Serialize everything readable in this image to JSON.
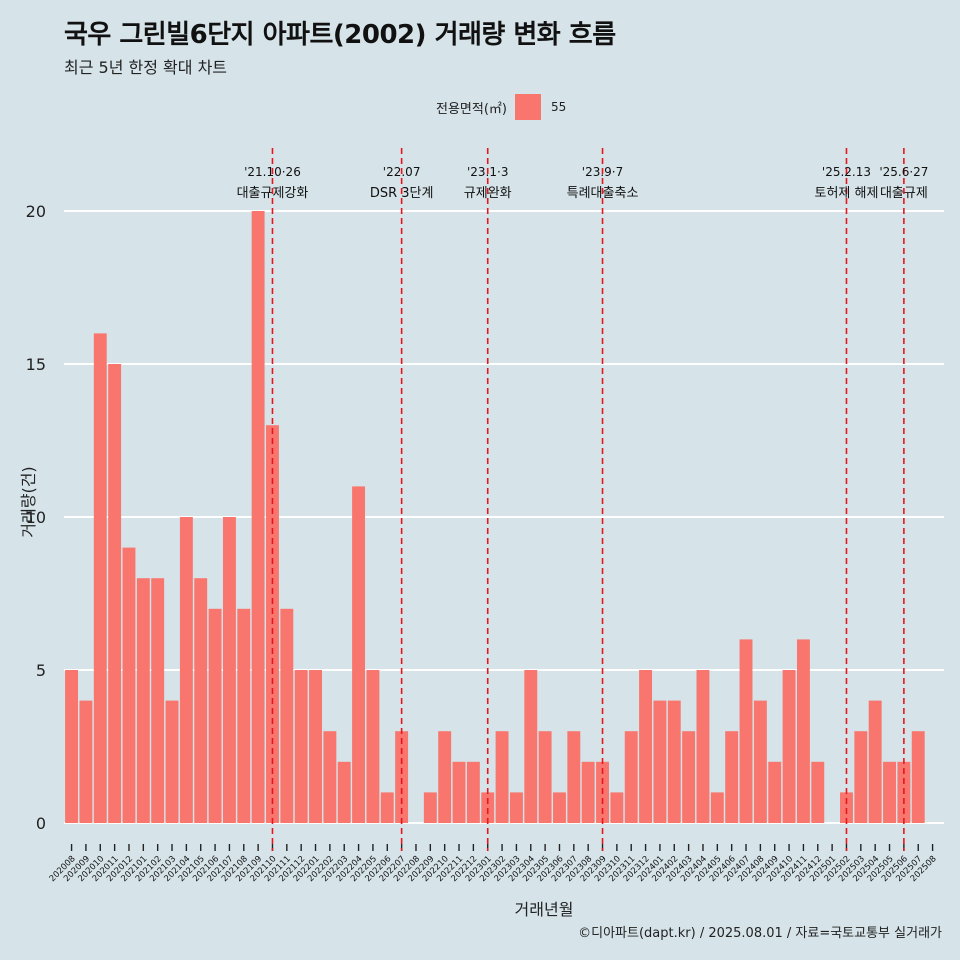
{
  "header": {
    "title": "국우 그린빌6단지 아파트(2002) 거래량 변화 흐름",
    "subtitle": "최근 5년 한정 확대 차트"
  },
  "legend": {
    "title": "전용면적(㎡)",
    "items": [
      {
        "label": "55",
        "color": "#f8766d"
      }
    ]
  },
  "caption": "©디아파트(dapt.kr) / 2025.08.01 / 자료=국토교통부 실거래가",
  "colors": {
    "background": "#d6e4ea",
    "bar": "#f8766d",
    "event_line": "#e8161b",
    "grid": "#ffffff"
  },
  "chart_data": {
    "type": "bar",
    "xlabel": "거래년월",
    "ylabel": "거래량(건)",
    "ylim": [
      -0.8,
      22.2
    ],
    "yticks": [
      0,
      5,
      10,
      15,
      20
    ],
    "grid": true,
    "legend_position": "top",
    "categories": [
      "202008",
      "202009",
      "202010",
      "202011",
      "202012",
      "202101",
      "202102",
      "202103",
      "202104",
      "202105",
      "202106",
      "202107",
      "202108",
      "202109",
      "202110",
      "202111",
      "202112",
      "202201",
      "202202",
      "202203",
      "202204",
      "202205",
      "202206",
      "202207",
      "202208",
      "202209",
      "202210",
      "202211",
      "202212",
      "202301",
      "202302",
      "202303",
      "202304",
      "202305",
      "202306",
      "202307",
      "202308",
      "202309",
      "202310",
      "202311",
      "202312",
      "202401",
      "202402",
      "202403",
      "202404",
      "202405",
      "202406",
      "202407",
      "202408",
      "202409",
      "202410",
      "202411",
      "202412",
      "202501",
      "202502",
      "202503",
      "202504",
      "202505",
      "202506",
      "202507",
      "202508"
    ],
    "series": [
      {
        "name": "55",
        "values": [
          5,
          4,
          16,
          15,
          9,
          8,
          8,
          4,
          10,
          8,
          7,
          10,
          7,
          20,
          13,
          7,
          5,
          5,
          3,
          2,
          11,
          5,
          1,
          3,
          0,
          1,
          3,
          2,
          2,
          1,
          3,
          1,
          5,
          3,
          1,
          3,
          2,
          2,
          1,
          3,
          5,
          4,
          4,
          3,
          5,
          1,
          3,
          6,
          4,
          2,
          5,
          6,
          2,
          0,
          1,
          3,
          4,
          2,
          2,
          3,
          0
        ]
      }
    ],
    "events": [
      {
        "date_label": "'21.10·26",
        "text": "대출규제강화",
        "at": "202110"
      },
      {
        "date_label": "'22.07",
        "text": "DSR 3단계",
        "at": "202207"
      },
      {
        "date_label": "'23.1·3",
        "text": "규제완화",
        "at": "202301"
      },
      {
        "date_label": "'23.9·7",
        "text": "특례대출축소",
        "at": "202309"
      },
      {
        "date_label": "'25.2.13",
        "text": "토허제 해제",
        "at": "202502"
      },
      {
        "date_label": "'25.6·27",
        "text": "대출규제",
        "at": "202506"
      }
    ]
  }
}
